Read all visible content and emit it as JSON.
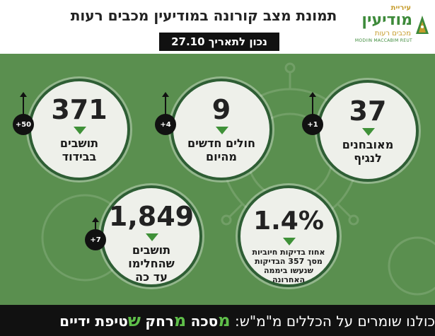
{
  "header": {
    "title": "תמונת מצב קורונה במודיעין מכבים רעות",
    "date": "נכון לתאריך 27.10"
  },
  "logo": {
    "line1": "עיריית",
    "line2": "מודיעין",
    "line3": "מכבים רעות",
    "line4": "MODIIN MACCABIM REUT"
  },
  "stats": {
    "confirmed": {
      "value": "37",
      "label1": "מאובחנים",
      "label2": "לנגיף",
      "delta": "+1"
    },
    "new_cases": {
      "value": "9",
      "label1": "חולים חדשים",
      "label2": "מהיום",
      "delta": "+4"
    },
    "isolation": {
      "value": "371",
      "label1": "תושבים",
      "label2": "בבידוד",
      "delta": "+50"
    },
    "positive_pct": {
      "value": "1.4%",
      "label1": "אחוז בדיקות חיוביות",
      "label2": "מסך 357 הבדיקות",
      "label3": "שנעשו ביממה",
      "label4": "האחרונה"
    },
    "recovered": {
      "value": "1,849",
      "label1": "תושבים שהחלימו",
      "label2": "עד כה",
      "delta": "+7"
    }
  },
  "footer": {
    "prefix": "כולנו שומרים על הכללים מ\"מ\"ש:",
    "m1": "מ",
    "w1": "סכה",
    "m2": "מ",
    "w2": "רחק",
    "s": "ש",
    "w3": "טיפת ידיים"
  },
  "colors": {
    "background": "#5a8f4f",
    "ring": "#2e5e34",
    "accent_green": "#3f9138",
    "footer_bg": "#111111"
  }
}
